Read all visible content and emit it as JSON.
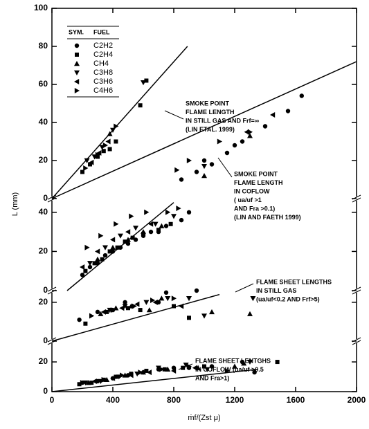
{
  "chart_data": [
    {
      "type": "scatter",
      "ylabel": "L (mm)",
      "xlim": [
        0,
        2000
      ],
      "ylim": [
        0,
        100
      ],
      "yticks": [
        0,
        20,
        40,
        60,
        80,
        100
      ],
      "legend_header": {
        "symbol": "SYM.",
        "name": "FUEL"
      },
      "legend": "upper left",
      "series": [
        {
          "name": "C2H2",
          "marker": "circle",
          "color": "#000000",
          "x": [
            850,
            950,
            1000,
            1050,
            1150,
            1200,
            1250,
            1400,
            1550,
            1640
          ],
          "values": [
            10,
            14,
            20,
            18,
            24,
            28,
            30,
            38,
            46,
            54
          ]
        },
        {
          "name": "C2H4",
          "marker": "square",
          "color": "#000000",
          "x": [
            200,
            250,
            300,
            340,
            380,
            420,
            580,
            620
          ],
          "values": [
            14,
            18,
            22,
            25,
            26,
            30,
            49,
            62
          ]
        },
        {
          "name": "CH4",
          "marker": "triangle-up",
          "color": "#000000",
          "x": [
            380,
            1000,
            1300
          ],
          "values": [
            34,
            12,
            33
          ]
        },
        {
          "name": "C3H8",
          "marker": "triangle-down",
          "color": "#000000",
          "x": [
            230,
            280,
            330,
            400,
            600,
            1000
          ],
          "values": [
            20,
            22,
            27,
            36,
            61,
            17
          ]
        },
        {
          "name": "C3H6",
          "marker": "triangle-left",
          "color": "#000000",
          "x": [
            260,
            310,
            370,
            1280,
            1450
          ],
          "values": [
            19,
            24,
            30,
            35,
            44
          ]
        },
        {
          "name": "C4H6",
          "marker": "triangle-right",
          "color": "#000000",
          "x": [
            220,
            300,
            350,
            420,
            820,
            900,
            1100,
            1300
          ],
          "values": [
            16,
            23,
            28,
            38,
            15,
            20,
            30,
            35
          ]
        }
      ],
      "fit_lines": [
        {
          "x": [
            0,
            890
          ],
          "y": [
            0,
            80
          ]
        },
        {
          "x": [
            0,
            2000
          ],
          "y": [
            0,
            72
          ]
        }
      ],
      "annotations": [
        [
          "SMOKE POINT",
          "FLAME LENGTH",
          "IN STILL GAS AND Frf=∞",
          "(LIN ETAL. 1999)"
        ]
      ]
    },
    {
      "type": "scatter",
      "xlim": [
        0,
        2000
      ],
      "ylim": [
        0,
        47
      ],
      "yticks": [
        0,
        20,
        40
      ],
      "series": [
        {
          "marker": "circle",
          "color": "#000000",
          "x": [
            200,
            250,
            300,
            350,
            400,
            450,
            500,
            550,
            600,
            650,
            700,
            750,
            850,
            900
          ],
          "values": [
            8,
            12,
            14,
            18,
            20,
            22,
            24,
            26,
            28,
            30,
            30,
            33,
            36,
            40
          ]
        },
        {
          "marker": "square",
          "color": "#000000",
          "x": [
            220,
            280,
            330,
            380,
            430,
            480,
            530,
            600,
            700,
            780
          ],
          "values": [
            10,
            14,
            16,
            20,
            22,
            25,
            27,
            29,
            31,
            34
          ]
        },
        {
          "marker": "triangle-up",
          "color": "#000000",
          "x": [
            300,
            400,
            500,
            600,
            720
          ],
          "values": [
            16,
            22,
            26,
            30,
            33
          ]
        },
        {
          "marker": "triangle-down",
          "color": "#000000",
          "x": [
            250,
            350,
            450,
            550,
            680,
            800
          ],
          "values": [
            14,
            22,
            28,
            32,
            34,
            38
          ]
        },
        {
          "marker": "triangle-left",
          "color": "#000000",
          "x": [
            200,
            300,
            400,
            500,
            650
          ],
          "values": [
            12,
            20,
            26,
            30,
            34
          ]
        },
        {
          "marker": "triangle-right",
          "color": "#000000",
          "x": [
            230,
            320,
            420,
            520,
            620,
            760,
            830
          ],
          "values": [
            22,
            28,
            34,
            38,
            40,
            40,
            42
          ]
        }
      ],
      "fit_lines": [
        {
          "x": [
            100,
            800
          ],
          "y": [
            0,
            45
          ]
        }
      ],
      "annotations": [
        [
          "SMOKE POINT",
          "FLAME LENGTH",
          "IN COFLOW",
          "( ua/uf >1",
          "AND Fra >0.1)",
          "(LIN AND FAETH 1999)"
        ]
      ]
    },
    {
      "type": "scatter",
      "xlim": [
        0,
        2000
      ],
      "ylim": [
        0,
        26
      ],
      "yticks": [
        0,
        20
      ],
      "series": [
        {
          "marker": "circle",
          "color": "#000000",
          "x": [
            180,
            300,
            400,
            480,
            700,
            750,
            950
          ],
          "values": [
            11,
            15,
            16,
            20,
            20,
            25,
            26
          ]
        },
        {
          "marker": "square",
          "color": "#000000",
          "x": [
            220,
            360,
            500,
            580,
            800,
            900
          ],
          "values": [
            9,
            15,
            17,
            16,
            18,
            12
          ]
        },
        {
          "marker": "triangle-up",
          "color": "#000000",
          "x": [
            320,
            420,
            520,
            640,
            720,
            1050,
            1300
          ],
          "values": [
            14,
            17,
            18,
            16,
            22,
            15,
            14
          ]
        },
        {
          "marker": "triangle-down",
          "color": "#000000",
          "x": [
            380,
            480,
            620,
            760,
            900,
            1000,
            1320
          ],
          "values": [
            16,
            18,
            20,
            22,
            22,
            13,
            22
          ]
        },
        {
          "marker": "triangle-left",
          "color": "#000000",
          "x": [
            340,
            460,
            560,
            680,
            850
          ],
          "values": [
            15,
            17,
            19,
            20,
            18
          ]
        },
        {
          "marker": "triangle-right",
          "color": "#000000",
          "x": [
            260,
            400,
            540,
            660,
            800
          ],
          "values": [
            13,
            16,
            18,
            21,
            22
          ]
        }
      ],
      "fit_lines": [
        {
          "x": [
            0,
            1100
          ],
          "y": [
            0,
            24
          ]
        }
      ],
      "annotations": [
        [
          "FLAME SHEET LENGTHS",
          "IN STILL GAS",
          "(ua/uf<0.2 AND Frf>5)"
        ]
      ]
    },
    {
      "type": "scatter",
      "xlabel": "ṁf/(Zst μ)",
      "xlim": [
        0,
        2000
      ],
      "xticks": [
        0,
        400,
        800,
        1200,
        1600,
        2000
      ],
      "ylim": [
        0,
        34
      ],
      "yticks": [
        0,
        20
      ],
      "series": [
        {
          "marker": "circle",
          "color": "#000000",
          "x": [
            200,
            300,
            400,
            500,
            600,
            700,
            800,
            900,
            1050,
            1250,
            1330
          ],
          "values": [
            6,
            7,
            9,
            11,
            13,
            15,
            16,
            16,
            17,
            20,
            13
          ]
        },
        {
          "marker": "square",
          "color": "#000000",
          "x": [
            180,
            260,
            340,
            420,
            520,
            620,
            740,
            860,
            1000,
            1480
          ],
          "values": [
            5,
            6,
            8,
            10,
            12,
            14,
            15,
            16,
            17,
            20
          ]
        },
        {
          "marker": "triangle-up",
          "color": "#000000",
          "x": [
            240,
            360,
            480,
            600,
            760,
            960,
            1200,
            1260
          ],
          "values": [
            6,
            8,
            11,
            13,
            15,
            16,
            17,
            19
          ]
        },
        {
          "marker": "triangle-down",
          "color": "#000000",
          "x": [
            220,
            320,
            440,
            560,
            700,
            880,
            1020,
            1300
          ],
          "values": [
            6,
            7,
            10,
            12,
            16,
            18,
            15,
            20
          ]
        },
        {
          "marker": "triangle-left",
          "color": "#000000",
          "x": [
            280,
            400,
            520,
            640,
            800,
            940
          ],
          "values": [
            7,
            9,
            11,
            13,
            14,
            16
          ]
        },
        {
          "marker": "triangle-right",
          "color": "#000000",
          "x": [
            200,
            340,
            460,
            580,
            720,
            900,
            1150
          ],
          "values": [
            6,
            8,
            11,
            13,
            15,
            17,
            14
          ]
        }
      ],
      "fit_lines": [
        {
          "x": [
            0,
            1350
          ],
          "y": [
            0,
            15
          ]
        }
      ],
      "annotations": [
        [
          "FLAME SHEET LENTGHS",
          "IN COFLOW (ua/uf >0.5",
          "AND Fra>1)"
        ]
      ]
    }
  ]
}
